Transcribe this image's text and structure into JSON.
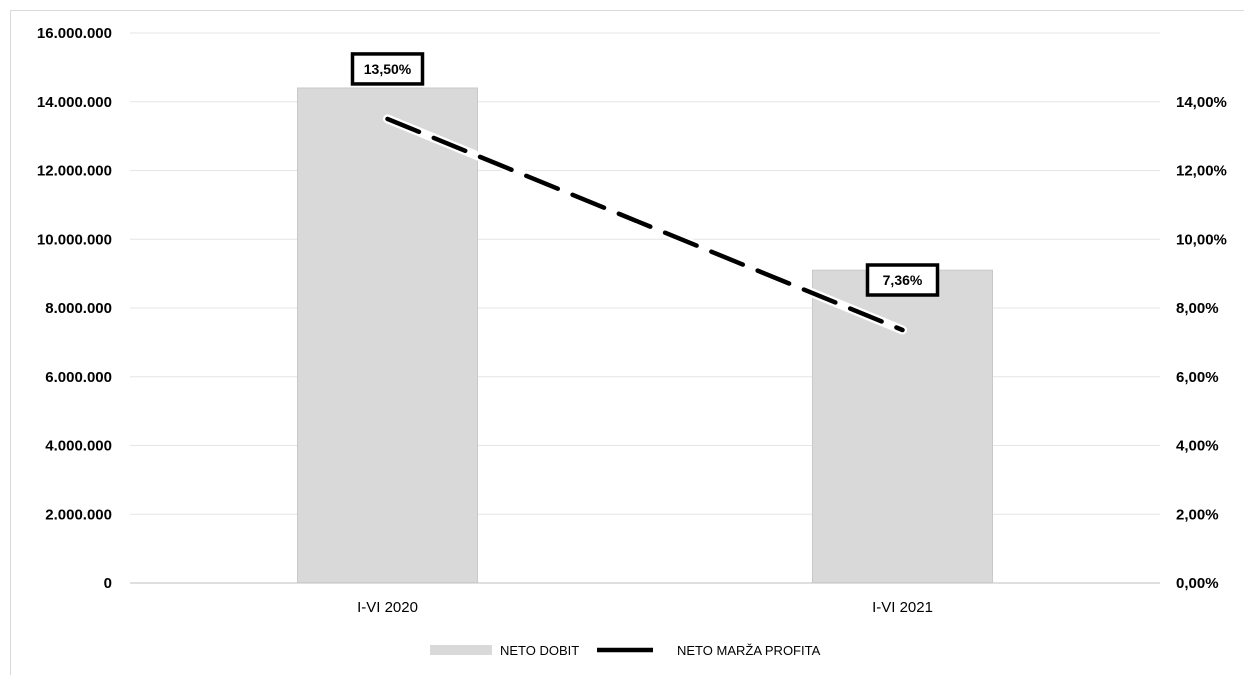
{
  "chart_data": {
    "type": "bar",
    "title": "",
    "categories": [
      "I-VI 2020",
      "I-VI 2021"
    ],
    "series": [
      {
        "name": "NETO DOBIT",
        "type": "bar",
        "axis": "left",
        "color": "#d9d9d9",
        "values": [
          14400000,
          9100000
        ]
      },
      {
        "name": "NETO MARŽA PROFITA",
        "type": "line",
        "axis": "right",
        "color": "#000000",
        "dashed": true,
        "values": [
          13.5,
          7.36
        ]
      }
    ],
    "left_axis": {
      "ylim": [
        0,
        16000000
      ],
      "ticks": [
        0,
        2000000,
        4000000,
        6000000,
        8000000,
        10000000,
        12000000,
        14000000,
        16000000
      ],
      "tick_labels": [
        "0",
        "2.000.000",
        "4.000.000",
        "6.000.000",
        "8.000.000",
        "10.000.000",
        "12.000.000",
        "14.000.000",
        "16.000.000"
      ]
    },
    "right_axis": {
      "ylim": [
        0,
        16
      ],
      "ticks": [
        0,
        2,
        4,
        6,
        8,
        10,
        12,
        14
      ],
      "tick_labels": [
        "0,00%",
        "2,00%",
        "4,00%",
        "6,00%",
        "8,00%",
        "10,00%",
        "12,00%",
        "14,00%"
      ]
    },
    "data_labels": [
      "13,50%",
      "7,36%"
    ],
    "grid": true,
    "legend": "bottom"
  }
}
